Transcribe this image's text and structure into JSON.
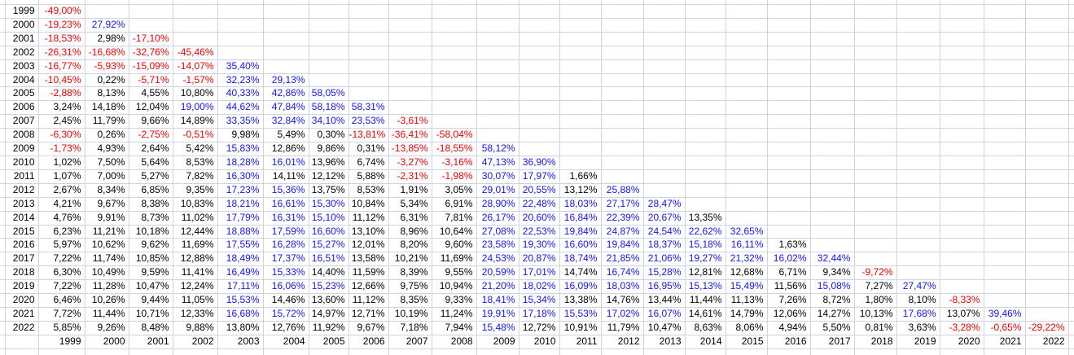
{
  "table": {
    "description_visible": "triangular matrix of percentage returns by start year (columns) and end year (rows)",
    "col_years": [
      "1999",
      "2000",
      "2001",
      "2002",
      "2003",
      "2004",
      "2005",
      "2006",
      "2007",
      "2008",
      "2009",
      "2010",
      "2011",
      "2012",
      "2013",
      "2014",
      "2015",
      "2016",
      "2017",
      "2018",
      "2019",
      "2020",
      "2021",
      "2022"
    ],
    "rows": [
      {
        "year": "1999",
        "values": [
          "-49,00%"
        ]
      },
      {
        "year": "2000",
        "values": [
          "-19,23%",
          "27,92%"
        ]
      },
      {
        "year": "2001",
        "values": [
          "-18,53%",
          "2,98%",
          "-17,10%"
        ]
      },
      {
        "year": "2002",
        "values": [
          "-26,31%",
          "-16,68%",
          "-32,76%",
          "-45,46%"
        ]
      },
      {
        "year": "2003",
        "values": [
          "-16,77%",
          "-5,93%",
          "-15,09%",
          "-14,07%",
          "35,40%"
        ]
      },
      {
        "year": "2004",
        "values": [
          "-10,45%",
          "0,22%",
          "-5,71%",
          "-1,57%",
          "32,23%",
          "29,13%"
        ]
      },
      {
        "year": "2005",
        "values": [
          "-2,88%",
          "8,13%",
          "4,55%",
          "10,80%",
          "40,33%",
          "42,86%",
          "58,05%"
        ]
      },
      {
        "year": "2006",
        "values": [
          "3,24%",
          "14,18%",
          "12,04%",
          "19,00%",
          "44,62%",
          "47,84%",
          "58,18%",
          "58,31%"
        ]
      },
      {
        "year": "2007",
        "values": [
          "2,45%",
          "11,79%",
          "9,66%",
          "14,89%",
          "33,35%",
          "32,84%",
          "34,10%",
          "23,53%",
          "-3,61%"
        ]
      },
      {
        "year": "2008",
        "values": [
          "-6,30%",
          "0,26%",
          "-2,75%",
          "-0,51%",
          "9,98%",
          "5,49%",
          "0,30%",
          "-13,81%",
          "-36,41%",
          "-58,04%"
        ]
      },
      {
        "year": "2009",
        "values": [
          "-1,73%",
          "4,93%",
          "2,64%",
          "5,42%",
          "15,83%",
          "12,86%",
          "9,86%",
          "0,31%",
          "-13,85%",
          "-18,55%",
          "58,12%"
        ]
      },
      {
        "year": "2010",
        "values": [
          "1,02%",
          "7,50%",
          "5,64%",
          "8,53%",
          "18,28%",
          "16,01%",
          "13,96%",
          "6,74%",
          "-3,27%",
          "-3,16%",
          "47,13%",
          "36,90%"
        ]
      },
      {
        "year": "2011",
        "values": [
          "1,07%",
          "7,00%",
          "5,27%",
          "7,82%",
          "16,30%",
          "14,11%",
          "12,12%",
          "5,88%",
          "-2,31%",
          "-1,98%",
          "30,07%",
          "17,97%",
          "1,66%"
        ]
      },
      {
        "year": "2012",
        "values": [
          "2,67%",
          "8,34%",
          "6,85%",
          "9,35%",
          "17,23%",
          "15,36%",
          "13,75%",
          "8,53%",
          "1,91%",
          "3,05%",
          "29,01%",
          "20,55%",
          "13,12%",
          "25,88%"
        ]
      },
      {
        "year": "2013",
        "values": [
          "4,21%",
          "9,67%",
          "8,38%",
          "10,83%",
          "18,21%",
          "16,61%",
          "15,30%",
          "10,84%",
          "5,34%",
          "6,91%",
          "28,90%",
          "22,48%",
          "18,03%",
          "27,17%",
          "28,47%"
        ]
      },
      {
        "year": "2014",
        "values": [
          "4,76%",
          "9,91%",
          "8,73%",
          "11,02%",
          "17,79%",
          "16,31%",
          "15,10%",
          "11,12%",
          "6,31%",
          "7,81%",
          "26,17%",
          "20,60%",
          "16,84%",
          "22,39%",
          "20,67%",
          "13,35%"
        ]
      },
      {
        "year": "2015",
        "values": [
          "6,23%",
          "11,21%",
          "10,18%",
          "12,44%",
          "18,88%",
          "17,59%",
          "16,60%",
          "13,10%",
          "8,96%",
          "10,64%",
          "27,08%",
          "22,53%",
          "19,84%",
          "24,87%",
          "24,54%",
          "22,62%",
          "32,65%"
        ]
      },
      {
        "year": "2016",
        "values": [
          "5,97%",
          "10,62%",
          "9,62%",
          "11,69%",
          "17,55%",
          "16,28%",
          "15,27%",
          "12,01%",
          "8,20%",
          "9,60%",
          "23,58%",
          "19,30%",
          "16,60%",
          "19,84%",
          "18,37%",
          "15,18%",
          "16,11%",
          "1,63%"
        ]
      },
      {
        "year": "2017",
        "values": [
          "7,22%",
          "11,74%",
          "10,85%",
          "12,88%",
          "18,49%",
          "17,37%",
          "16,51%",
          "13,58%",
          "10,21%",
          "11,69%",
          "24,53%",
          "20,87%",
          "18,74%",
          "21,85%",
          "21,06%",
          "19,27%",
          "21,32%",
          "16,02%",
          "32,44%"
        ]
      },
      {
        "year": "2018",
        "values": [
          "6,30%",
          "10,49%",
          "9,59%",
          "11,41%",
          "16,49%",
          "15,33%",
          "14,40%",
          "11,59%",
          "8,39%",
          "9,55%",
          "20,59%",
          "17,01%",
          "14,74%",
          "16,74%",
          "15,28%",
          "12,81%",
          "12,68%",
          "6,71%",
          "9,34%",
          "-9,72%"
        ]
      },
      {
        "year": "2019",
        "values": [
          "7,22%",
          "11,28%",
          "10,47%",
          "12,24%",
          "17,11%",
          "16,06%",
          "15,23%",
          "12,66%",
          "9,75%",
          "10,94%",
          "21,20%",
          "18,02%",
          "16,09%",
          "18,03%",
          "16,95%",
          "15,13%",
          "15,49%",
          "11,56%",
          "15,08%",
          "7,27%",
          "27,47%"
        ]
      },
      {
        "year": "2020",
        "values": [
          "6,46%",
          "10,26%",
          "9,44%",
          "11,05%",
          "15,53%",
          "14,46%",
          "13,60%",
          "11,12%",
          "8,35%",
          "9,33%",
          "18,41%",
          "15,34%",
          "13,38%",
          "14,76%",
          "13,44%",
          "11,44%",
          "11,13%",
          "7,26%",
          "8,72%",
          "1,80%",
          "8,10%",
          "-8,33%"
        ]
      },
      {
        "year": "2021",
        "values": [
          "7,72%",
          "11,44%",
          "10,71%",
          "12,33%",
          "16,68%",
          "15,72%",
          "14,97%",
          "12,71%",
          "10,19%",
          "11,24%",
          "19,91%",
          "17,18%",
          "15,53%",
          "17,02%",
          "16,07%",
          "14,61%",
          "14,79%",
          "12,06%",
          "14,27%",
          "10,13%",
          "17,68%",
          "13,07%",
          "39,46%"
        ]
      },
      {
        "year": "2022",
        "values": [
          "5,85%",
          "9,26%",
          "8,48%",
          "9,88%",
          "13,80%",
          "12,76%",
          "11,92%",
          "9,67%",
          "7,18%",
          "7,94%",
          "15,48%",
          "12,72%",
          "10,91%",
          "11,79%",
          "10,47%",
          "8,63%",
          "8,06%",
          "4,94%",
          "5,50%",
          "0,81%",
          "3,63%",
          "-3,28%",
          "-0,65%",
          "-29,22%"
        ]
      }
    ],
    "footer_years": [
      "1999",
      "2000",
      "2001",
      "2002",
      "2003",
      "2004",
      "2005",
      "2006",
      "2007",
      "2008",
      "2009",
      "2010",
      "2011",
      "2012",
      "2013",
      "2014",
      "2015",
      "2016",
      "2017",
      "2018",
      "2019",
      "2020",
      "2021",
      "2022"
    ]
  },
  "format": {
    "decimal_separator": ",",
    "unit": "%",
    "high_value_threshold": 15
  },
  "colors": {
    "negative_value": "#F00000",
    "high_value": "#1414F0",
    "default_value": "#000000",
    "gridline": "#CDD3DF",
    "background": "#FFFFFF"
  }
}
